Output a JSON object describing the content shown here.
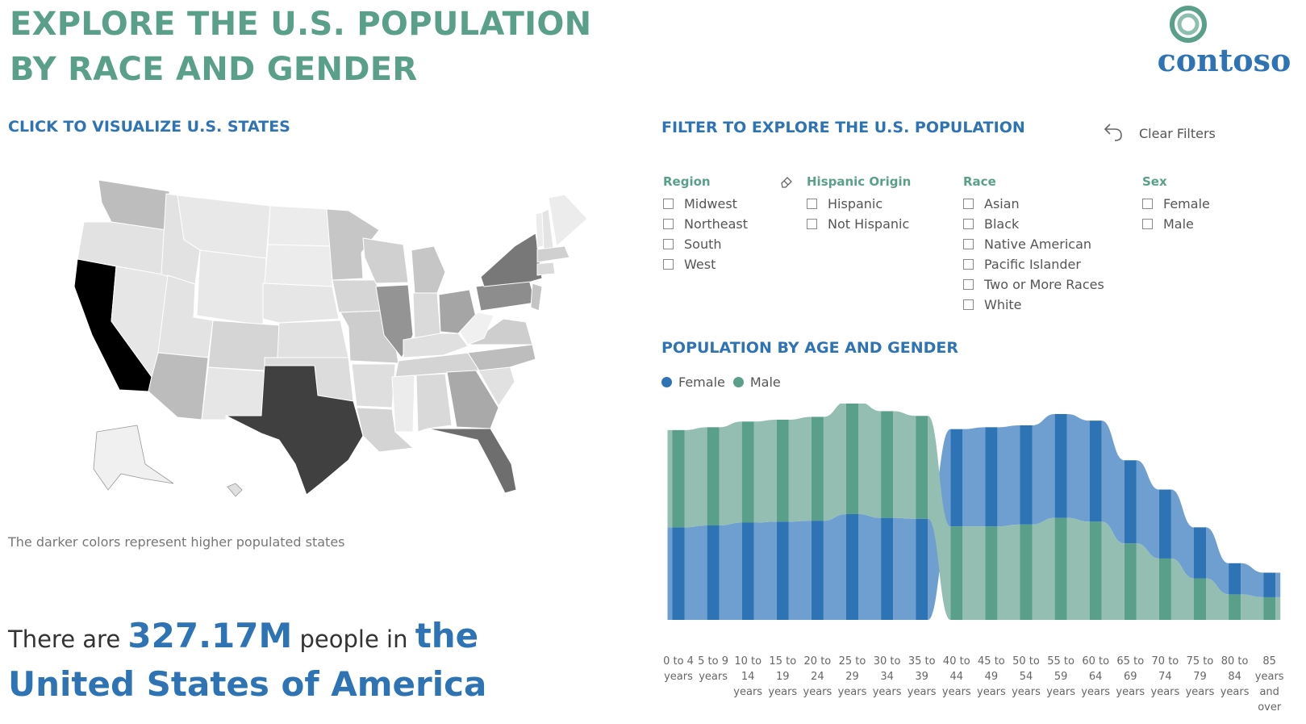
{
  "header": {
    "title": "EXPLORE THE U.S. POPULATION BY RACE AND GENDER",
    "logo_text": "contoso"
  },
  "map_section": {
    "heading": "CLICK TO VISUALIZE U.S. STATES",
    "note": "The darker colors represent higher populated states"
  },
  "summary": {
    "prefix": "There are",
    "population": "327.17M",
    "middle": "people in",
    "place": "the United States of America"
  },
  "filters": {
    "heading": "FILTER TO EXPLORE THE U.S. POPULATION",
    "clear_label": "Clear Filters",
    "groups": [
      {
        "title": "Region",
        "options": [
          "Midwest",
          "Northeast",
          "South",
          "West"
        ]
      },
      {
        "title": "Hispanic Origin",
        "options": [
          "Hispanic",
          "Not Hispanic"
        ]
      },
      {
        "title": "Race",
        "options": [
          "Asian",
          "Black",
          "Native American",
          "Pacific Islander",
          "Two or More Races",
          "White"
        ]
      },
      {
        "title": "Sex",
        "options": [
          "Female",
          "Male"
        ]
      }
    ]
  },
  "chart_section": {
    "heading": "POPULATION BY AGE AND GENDER"
  },
  "colors": {
    "female": "#2e74b5",
    "female_light": "#6f9fd0",
    "male": "#5a9f8a",
    "male_light": "#94beb1",
    "accent": "#2e74b5",
    "title": "#5a9f8a"
  },
  "chart_data": {
    "type": "area",
    "subtype": "ribbon",
    "legend": [
      "Female",
      "Male"
    ],
    "legend_position": "top-left",
    "categories": [
      "0 to 4 years",
      "5 to 9 years",
      "10 to 14 years",
      "15 to 19 years",
      "20 to 24 years",
      "25 to 29 years",
      "30 to 34 years",
      "35 to 39 years",
      "40 to 44 years",
      "45 to 49 years",
      "50 to 54 years",
      "55 to 59 years",
      "60 to 64 years",
      "65 to 69 years",
      "70 to 74 years",
      "75 to 79 years",
      "80 to 84 years",
      "85 years and over"
    ],
    "series": [
      {
        "name": "Female",
        "values": [
          9.8,
          10.0,
          10.3,
          10.4,
          10.5,
          11.2,
          10.8,
          10.7,
          10.3,
          10.5,
          10.5,
          11.0,
          10.7,
          8.8,
          7.3,
          5.4,
          3.3,
          2.6
        ]
      },
      {
        "name": "Male",
        "values": [
          10.3,
          10.4,
          10.7,
          10.8,
          11.0,
          11.9,
          11.3,
          10.9,
          9.9,
          9.9,
          10.1,
          10.8,
          10.4,
          8.1,
          6.5,
          4.4,
          2.7,
          2.4
        ]
      }
    ],
    "grid": false
  }
}
